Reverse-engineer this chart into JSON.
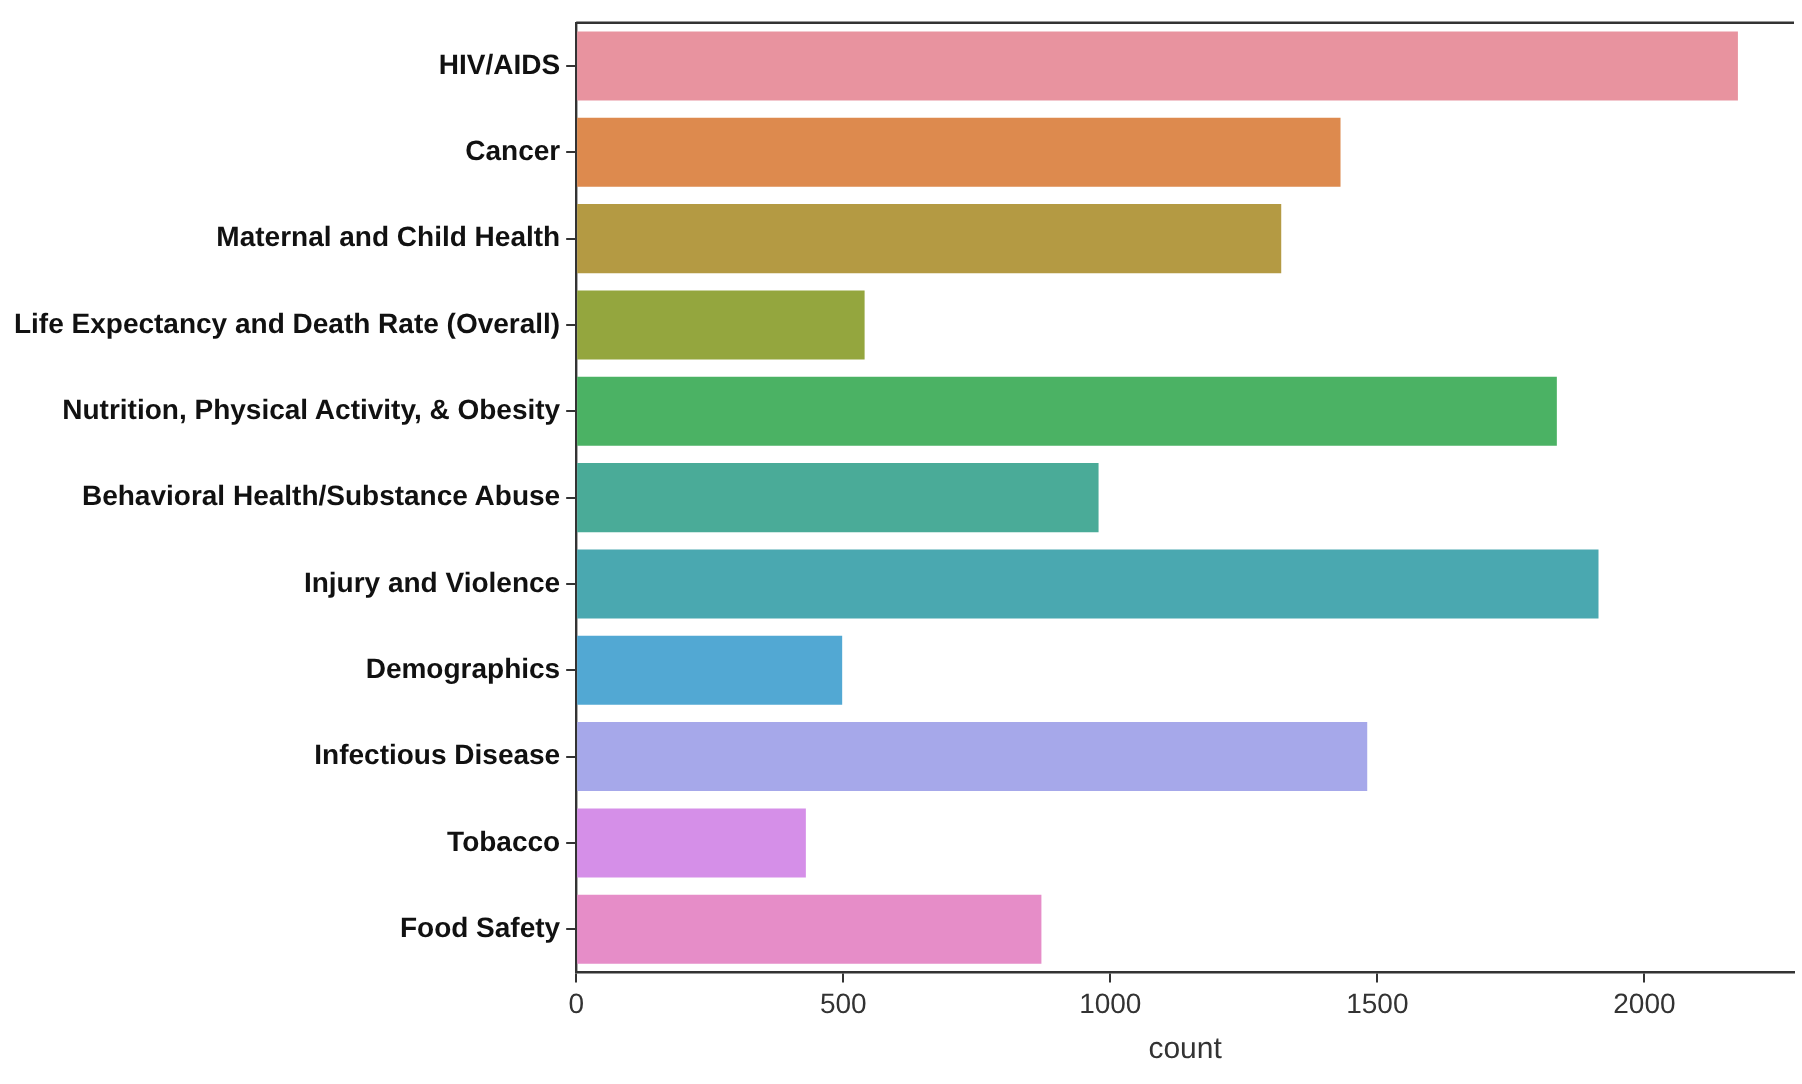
{
  "chart_data": {
    "type": "bar",
    "orientation": "horizontal",
    "xlabel": "count",
    "categories": [
      "HIV/AIDS",
      "Cancer",
      "Maternal and Child Health",
      "Life Expectancy and Death Rate (Overall)",
      "Nutrition, Physical Activity, & Obesity",
      "Behavioral Health/Substance Abuse",
      "Injury and Violence",
      "Demographics",
      "Infectious Disease",
      "Tobacco",
      "Food Safety"
    ],
    "values": [
      2175,
      1431,
      1320,
      540,
      1836,
      978,
      1914,
      498,
      1481,
      430,
      871
    ],
    "colors": [
      "#e8939f",
      "#dd8a4e",
      "#b49a43",
      "#94a63e",
      "#4bb264",
      "#4aab98",
      "#4aa8b0",
      "#52a8d3",
      "#a6a8ea",
      "#d58fe8",
      "#e68dc8"
    ],
    "xlim": [
      0,
      2280
    ],
    "xticks": [
      0,
      500,
      1000,
      1500,
      2000
    ],
    "grid": false,
    "legend": false
  }
}
